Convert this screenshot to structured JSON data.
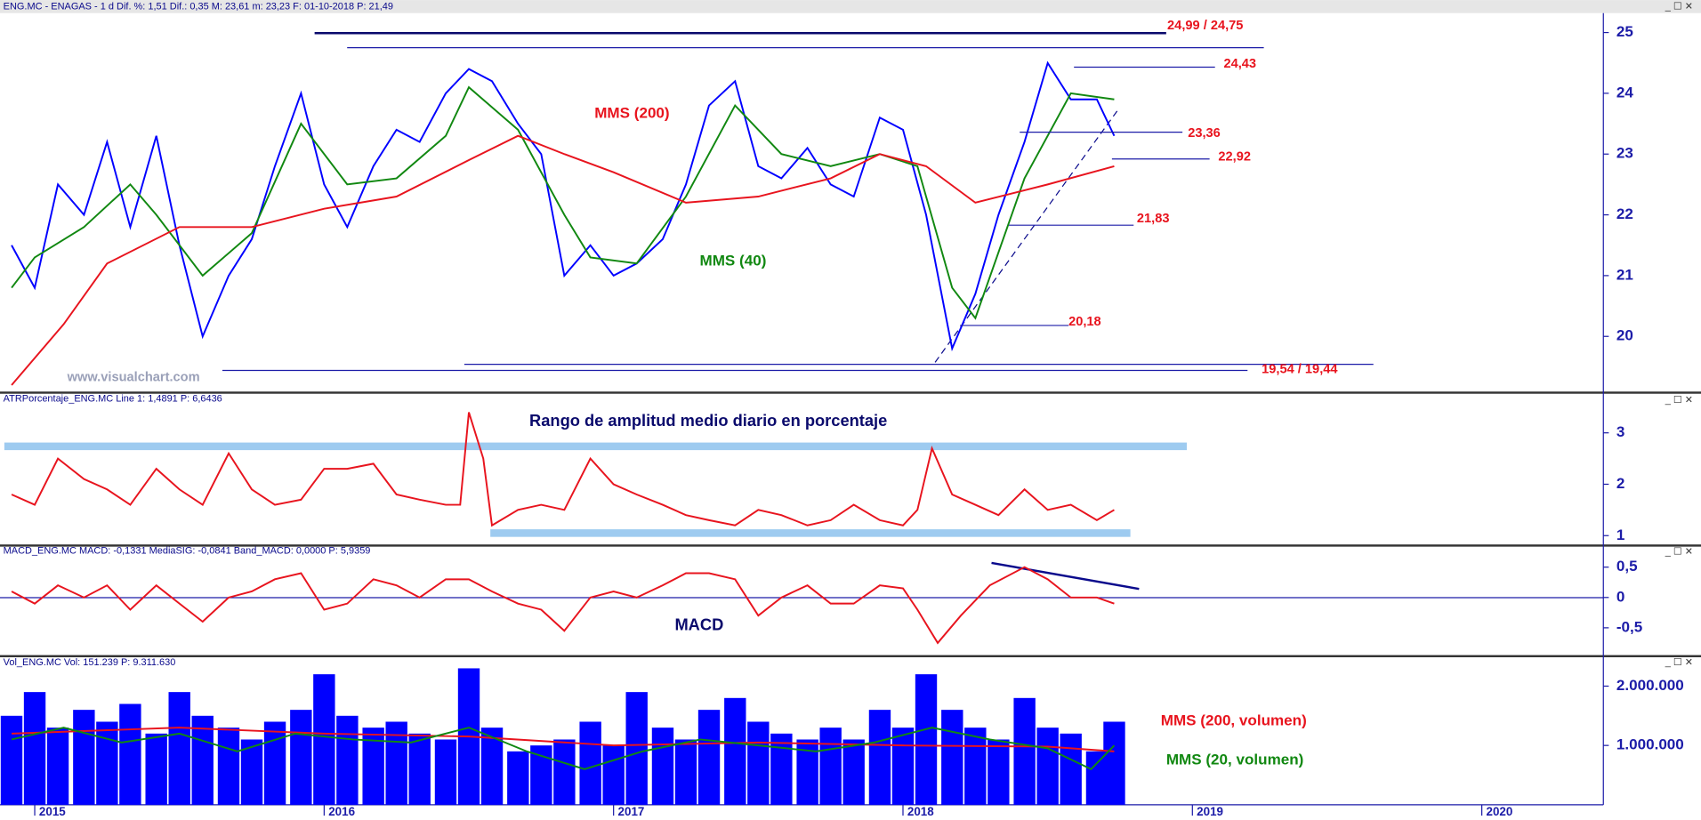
{
  "chart_data": [
    {
      "type": "line",
      "header": "ENG.MC - ENAGAS -  1 d  Dif. %: 1,51  Dif.: 0,35  M: 23,61  m: 23,23  F: 01-10-2018  P: 21,49",
      "watermark": "www.visualchart.com",
      "x": [
        2014.92,
        2015.0,
        2015.08,
        2015.17,
        2015.25,
        2015.33,
        2015.42,
        2015.5,
        2015.58,
        2015.67,
        2015.75,
        2015.83,
        2015.92,
        2016.0,
        2016.08,
        2016.17,
        2016.25,
        2016.33,
        2016.42,
        2016.5,
        2016.58,
        2016.67,
        2016.75,
        2016.83,
        2016.92,
        2017.0,
        2017.08,
        2017.17,
        2017.25,
        2017.33,
        2017.42,
        2017.5,
        2017.58,
        2017.67,
        2017.75,
        2017.83,
        2017.92,
        2018.0,
        2018.08,
        2018.17,
        2018.25,
        2018.33,
        2018.42,
        2018.5,
        2018.58,
        2018.67,
        2018.73
      ],
      "xlim": [
        2014.88,
        2020.42
      ],
      "ylim": [
        19.11,
        25.32
      ],
      "yticks": [
        20,
        21,
        22,
        23,
        24,
        25
      ],
      "series": [
        {
          "color": "#0000ff",
          "values": [
            21.5,
            20.8,
            22.5,
            22.0,
            23.2,
            21.8,
            23.3,
            21.5,
            20.0,
            21.0,
            21.6,
            22.8,
            24.0,
            22.5,
            21.8,
            22.8,
            23.4,
            23.2,
            24.0,
            24.4,
            24.2,
            23.5,
            23.0,
            21.0,
            21.5,
            21.0,
            21.2,
            21.6,
            22.5,
            23.8,
            24.2,
            22.8,
            22.6,
            23.1,
            22.5,
            22.3,
            23.6,
            23.4,
            22.0,
            19.8,
            20.7,
            22.0,
            23.2,
            24.5,
            23.9,
            23.9,
            23.3
          ]
        },
        {
          "name": "MMS (40)",
          "color": "#118811",
          "x": [
            2014.92,
            2015.0,
            2015.17,
            2015.33,
            2015.42,
            2015.58,
            2015.75,
            2015.92,
            2016.08,
            2016.25,
            2016.42,
            2016.5,
            2016.67,
            2016.83,
            2016.92,
            2017.08,
            2017.25,
            2017.42,
            2017.58,
            2017.75,
            2017.92,
            2018.05,
            2018.17,
            2018.25,
            2018.42,
            2018.58,
            2018.73
          ],
          "values": [
            20.8,
            21.3,
            21.8,
            22.5,
            22.0,
            21.0,
            21.7,
            23.5,
            22.5,
            22.6,
            23.3,
            24.1,
            23.4,
            22.0,
            21.3,
            21.2,
            22.3,
            23.8,
            23.0,
            22.8,
            23.0,
            22.8,
            20.8,
            20.3,
            22.6,
            24.0,
            23.9
          ]
        },
        {
          "name": "MMS (200)",
          "color": "#e8141e",
          "x": [
            2014.92,
            2015.1,
            2015.25,
            2015.5,
            2015.75,
            2016.0,
            2016.25,
            2016.5,
            2016.67,
            2016.83,
            2017.0,
            2017.25,
            2017.5,
            2017.75,
            2017.92,
            2018.08,
            2018.25,
            2018.5,
            2018.73
          ],
          "values": [
            19.2,
            20.2,
            21.2,
            21.8,
            21.8,
            22.1,
            22.3,
            22.9,
            23.3,
            23.0,
            22.7,
            22.2,
            22.3,
            22.6,
            23.0,
            22.8,
            22.2,
            22.5,
            22.8
          ]
        }
      ],
      "levels": [
        {
          "label": "24,99 / 24,75",
          "values": [
            24.99,
            24.75
          ]
        },
        {
          "label": "24,43",
          "values": [
            24.43
          ]
        },
        {
          "label": "23,36",
          "values": [
            23.36
          ]
        },
        {
          "label": "22,92",
          "values": [
            22.92
          ]
        },
        {
          "label": "21,83",
          "values": [
            21.83
          ]
        },
        {
          "label": "20,18",
          "values": [
            20.18
          ]
        },
        {
          "label": "19,54 / 19,44",
          "values": [
            19.54,
            19.44
          ]
        }
      ]
    },
    {
      "type": "line",
      "header": "ATRPorcentaje_ENG.MC  Line 1: 1,4891  P: 6,6436",
      "title": "Rango de amplitud medio diario en porcentaje",
      "x": [
        2014.92,
        2015.0,
        2015.08,
        2015.17,
        2015.25,
        2015.33,
        2015.42,
        2015.5,
        2015.58,
        2015.67,
        2015.75,
        2015.83,
        2015.92,
        2016.0,
        2016.08,
        2016.17,
        2016.25,
        2016.33,
        2016.42,
        2016.47,
        2016.5,
        2016.55,
        2016.58,
        2016.67,
        2016.75,
        2016.83,
        2016.92,
        2017.0,
        2017.08,
        2017.17,
        2017.25,
        2017.33,
        2017.42,
        2017.5,
        2017.58,
        2017.67,
        2017.75,
        2017.83,
        2017.92,
        2018.0,
        2018.05,
        2018.1,
        2018.17,
        2018.25,
        2018.33,
        2018.42,
        2018.5,
        2018.58,
        2018.67,
        2018.73
      ],
      "xlim": [
        2014.88,
        2020.42
      ],
      "ylim": [
        0.87,
        3.74
      ],
      "yticks": [
        1,
        2,
        3
      ],
      "series": [
        {
          "color": "#e8141e",
          "values": [
            1.8,
            1.6,
            2.5,
            2.1,
            1.9,
            1.6,
            2.3,
            1.9,
            1.6,
            2.6,
            1.9,
            1.6,
            1.7,
            2.3,
            2.3,
            2.4,
            1.8,
            1.7,
            1.6,
            1.6,
            3.4,
            2.5,
            1.2,
            1.5,
            1.6,
            1.5,
            2.5,
            2.0,
            1.8,
            1.6,
            1.4,
            1.3,
            1.2,
            1.5,
            1.4,
            1.2,
            1.3,
            1.6,
            1.3,
            1.2,
            1.5,
            2.7,
            1.8,
            1.6,
            1.4,
            1.9,
            1.5,
            1.6,
            1.3,
            1.5
          ]
        }
      ]
    },
    {
      "type": "line",
      "header": "MACD_ENG.MC  MACD: -0,1331  MediaSIG: -0,0841  Band_MACD: 0,0000  P: 5,9359",
      "title": "MACD",
      "x": [
        2014.92,
        2015.0,
        2015.08,
        2015.17,
        2015.25,
        2015.33,
        2015.42,
        2015.5,
        2015.58,
        2015.67,
        2015.75,
        2015.83,
        2015.92,
        2016.0,
        2016.08,
        2016.17,
        2016.25,
        2016.33,
        2016.42,
        2016.5,
        2016.58,
        2016.67,
        2016.75,
        2016.83,
        2016.92,
        2017.0,
        2017.08,
        2017.17,
        2017.25,
        2017.33,
        2017.42,
        2017.5,
        2017.58,
        2017.67,
        2017.75,
        2017.83,
        2017.92,
        2018.0,
        2018.05,
        2018.12,
        2018.2,
        2018.3,
        2018.42,
        2018.5,
        2018.58,
        2018.67,
        2018.73
      ],
      "xlim": [
        2014.88,
        2020.42
      ],
      "ylim": [
        -0.95,
        0.82
      ],
      "yticks": [
        {
          "value": 0.5,
          "label": "0,5"
        },
        0,
        {
          "value": -0.5,
          "label": "-0,5"
        }
      ],
      "series": [
        {
          "color": "#e8141e",
          "values": [
            0.1,
            -0.1,
            0.2,
            0.0,
            0.2,
            -0.2,
            0.2,
            -0.1,
            -0.4,
            0.0,
            0.1,
            0.3,
            0.4,
            -0.2,
            -0.1,
            0.3,
            0.2,
            0.0,
            0.3,
            0.3,
            0.1,
            -0.1,
            -0.2,
            -0.55,
            0.0,
            0.1,
            0.0,
            0.2,
            0.4,
            0.4,
            0.3,
            -0.3,
            0.0,
            0.2,
            -0.1,
            -0.1,
            0.2,
            0.15,
            -0.2,
            -0.75,
            -0.3,
            0.2,
            0.5,
            0.3,
            0.0,
            0.0,
            -0.1
          ]
        }
      ]
    },
    {
      "type": "bar",
      "header": "Vol_ENG.MC  Vol: 151.239  P: 9.311.630",
      "color": "#0000ff",
      "x": [
        2014.92,
        2015.0,
        2015.08,
        2015.17,
        2015.25,
        2015.33,
        2015.42,
        2015.5,
        2015.58,
        2015.67,
        2015.75,
        2015.83,
        2015.92,
        2016.0,
        2016.08,
        2016.17,
        2016.25,
        2016.33,
        2016.42,
        2016.5,
        2016.58,
        2016.67,
        2016.75,
        2016.83,
        2016.92,
        2017.0,
        2017.08,
        2017.17,
        2017.25,
        2017.33,
        2017.42,
        2017.5,
        2017.58,
        2017.67,
        2017.75,
        2017.83,
        2017.92,
        2018.0,
        2018.08,
        2018.17,
        2018.25,
        2018.33,
        2018.42,
        2018.5,
        2018.58,
        2018.67,
        2018.73
      ],
      "values": [
        1500000,
        1900000,
        1300000,
        1600000,
        1400000,
        1700000,
        1200000,
        1900000,
        1500000,
        1300000,
        1100000,
        1400000,
        1600000,
        2200000,
        1500000,
        1300000,
        1400000,
        1200000,
        1100000,
        2300000,
        1300000,
        900000,
        1000000,
        1100000,
        1400000,
        1000000,
        1900000,
        1300000,
        1100000,
        1600000,
        1800000,
        1400000,
        1200000,
        1100000,
        1300000,
        1100000,
        1600000,
        1300000,
        2200000,
        1600000,
        1300000,
        1100000,
        1800000,
        1300000,
        1200000,
        900000,
        1400000
      ],
      "xlim": [
        2014.88,
        2020.42
      ],
      "ylim": [
        0,
        2450000
      ],
      "xticks": [
        2015,
        2016,
        2017,
        2018,
        2019,
        2020
      ],
      "yticks": [
        {
          "value": 1000000,
          "label": "1.000.000"
        },
        {
          "value": 2000000,
          "label": "2.000.000"
        }
      ],
      "series": [
        {
          "name": "MMS (200, volumen)",
          "color": "#e8141e",
          "x": [
            2014.92,
            2015.5,
            2016.0,
            2016.5,
            2017.0,
            2017.5,
            2018.0,
            2018.5,
            2018.73
          ],
          "values": [
            1200000,
            1300000,
            1200000,
            1150000,
            1000000,
            1050000,
            1000000,
            980000,
            900000
          ]
        },
        {
          "name": "MMS (20, volumen)",
          "color": "#118811",
          "x": [
            2014.92,
            2015.1,
            2015.3,
            2015.5,
            2015.7,
            2015.9,
            2016.1,
            2016.3,
            2016.5,
            2016.7,
            2016.9,
            2017.1,
            2017.3,
            2017.5,
            2017.7,
            2017.9,
            2018.1,
            2018.3,
            2018.5,
            2018.65,
            2018.73
          ],
          "values": [
            1100000,
            1300000,
            1050000,
            1200000,
            900000,
            1200000,
            1100000,
            1050000,
            1300000,
            900000,
            600000,
            900000,
            1100000,
            1000000,
            900000,
            1050000,
            1300000,
            1100000,
            950000,
            600000,
            1000000
          ]
        }
      ]
    }
  ]
}
